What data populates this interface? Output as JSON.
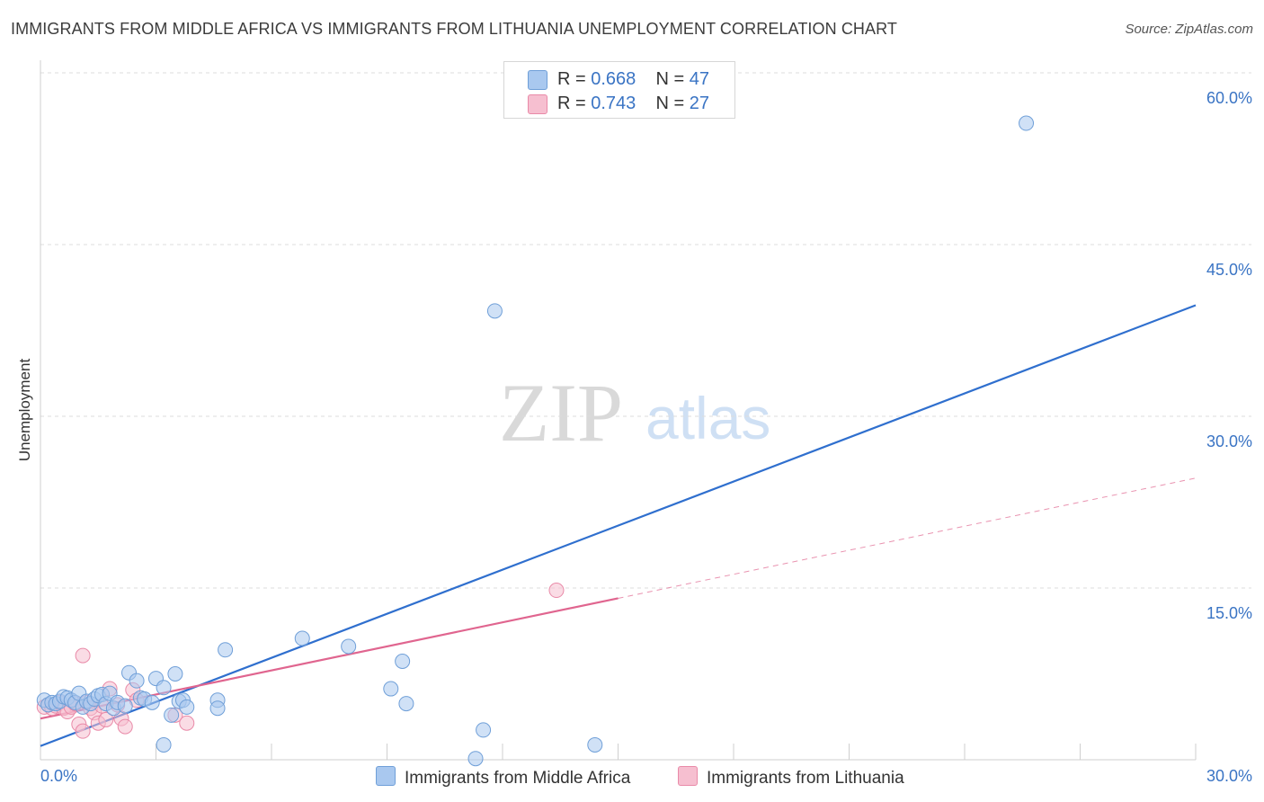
{
  "title": "IMMIGRANTS FROM MIDDLE AFRICA VS IMMIGRANTS FROM LITHUANIA UNEMPLOYMENT CORRELATION CHART",
  "source": "Source: ZipAtlas.com",
  "watermark": {
    "zip": "ZIP",
    "atlas": "atlas"
  },
  "legend": {
    "rows": [
      {
        "r_label": "R =",
        "r_value": "0.668",
        "n_label": "N =",
        "n_value": "47"
      },
      {
        "r_label": "R =",
        "r_value": "0.743",
        "n_label": "N =",
        "n_value": "27"
      }
    ]
  },
  "colors": {
    "blue_fill": "#a9c8ef",
    "blue_stroke": "#6f9fd8",
    "blue_line": "#2f6fce",
    "pink_fill": "#f6bfd0",
    "pink_stroke": "#e98aa8",
    "pink_line": "#e0658f",
    "grid": "#dcdcdc",
    "tick_label": "#3a74c4"
  },
  "chart_data": {
    "type": "scatter",
    "title": "IMMIGRANTS FROM MIDDLE AFRICA VS IMMIGRANTS FROM LITHUANIA UNEMPLOYMENT CORRELATION CHART",
    "xlabel": "",
    "ylabel": "Unemployment",
    "xlim": [
      0,
      30
    ],
    "ylim": [
      0,
      60
    ],
    "x_tick_labels": [
      "0.0%",
      "30.0%"
    ],
    "y_ticks": [
      15,
      30,
      45,
      60
    ],
    "y_tick_labels": [
      "15.0%",
      "30.0%",
      "45.0%",
      "60.0%"
    ],
    "grid": true,
    "legend_position": "top-center",
    "series": [
      {
        "name": "Immigrants from Middle Africa",
        "color": "#a9c8ef",
        "r": 0.668,
        "n": 47,
        "trend": {
          "x": [
            0,
            30
          ],
          "y": [
            1.2,
            39.7
          ]
        },
        "points": [
          [
            0.1,
            5.2
          ],
          [
            0.2,
            4.8
          ],
          [
            0.3,
            5.0
          ],
          [
            0.4,
            4.9
          ],
          [
            0.5,
            5.1
          ],
          [
            0.6,
            5.5
          ],
          [
            0.7,
            5.4
          ],
          [
            0.8,
            5.2
          ],
          [
            0.9,
            5.0
          ],
          [
            1.0,
            5.8
          ],
          [
            1.1,
            4.6
          ],
          [
            1.2,
            5.1
          ],
          [
            1.3,
            4.9
          ],
          [
            1.4,
            5.3
          ],
          [
            1.5,
            5.6
          ],
          [
            1.6,
            5.7
          ],
          [
            1.7,
            4.9
          ],
          [
            1.8,
            5.8
          ],
          [
            1.9,
            4.5
          ],
          [
            2.0,
            5.0
          ],
          [
            2.2,
            4.7
          ],
          [
            2.3,
            7.6
          ],
          [
            2.5,
            6.9
          ],
          [
            2.6,
            5.4
          ],
          [
            2.7,
            5.3
          ],
          [
            2.9,
            5.0
          ],
          [
            3.0,
            7.1
          ],
          [
            3.2,
            6.3
          ],
          [
            3.4,
            3.9
          ],
          [
            3.5,
            7.5
          ],
          [
            3.6,
            5.1
          ],
          [
            3.7,
            5.2
          ],
          [
            3.8,
            4.6
          ],
          [
            4.6,
            5.2
          ],
          [
            4.8,
            9.6
          ],
          [
            6.8,
            10.6
          ],
          [
            8.0,
            9.9
          ],
          [
            9.1,
            6.2
          ],
          [
            9.4,
            8.6
          ],
          [
            9.5,
            4.9
          ],
          [
            11.3,
            0.1
          ],
          [
            11.5,
            2.6
          ],
          [
            11.8,
            39.2
          ],
          [
            14.4,
            1.3
          ],
          [
            25.6,
            55.6
          ],
          [
            3.2,
            1.3
          ],
          [
            4.6,
            4.5
          ]
        ]
      },
      {
        "name": "Immigrants from Lithuania",
        "color": "#f6bfd0",
        "r": 0.743,
        "n": 27,
        "trend": {
          "x": [
            0,
            15
          ],
          "y": [
            3.6,
            14.1
          ]
        },
        "trend_extension": {
          "x": [
            15,
            30
          ],
          "y": [
            14.1,
            24.6
          ]
        },
        "points": [
          [
            0.1,
            4.6
          ],
          [
            0.2,
            4.8
          ],
          [
            0.3,
            4.5
          ],
          [
            0.4,
            4.7
          ],
          [
            0.5,
            5.0
          ],
          [
            0.6,
            4.5
          ],
          [
            0.7,
            4.2
          ],
          [
            0.8,
            4.6
          ],
          [
            0.9,
            4.9
          ],
          [
            1.0,
            3.1
          ],
          [
            1.1,
            2.5
          ],
          [
            1.2,
            5.0
          ],
          [
            1.3,
            4.5
          ],
          [
            1.4,
            4.1
          ],
          [
            1.5,
            3.2
          ],
          [
            1.6,
            4.7
          ],
          [
            1.7,
            3.5
          ],
          [
            1.8,
            6.2
          ],
          [
            2.0,
            4.8
          ],
          [
            2.1,
            3.6
          ],
          [
            2.2,
            2.9
          ],
          [
            2.4,
            6.1
          ],
          [
            3.5,
            3.9
          ],
          [
            3.8,
            3.2
          ],
          [
            1.1,
            9.1
          ],
          [
            13.4,
            14.8
          ],
          [
            2.5,
            5.2
          ]
        ]
      }
    ]
  },
  "bottom_legend": [
    "Immigrants from Middle Africa",
    "Immigrants from Lithuania"
  ]
}
